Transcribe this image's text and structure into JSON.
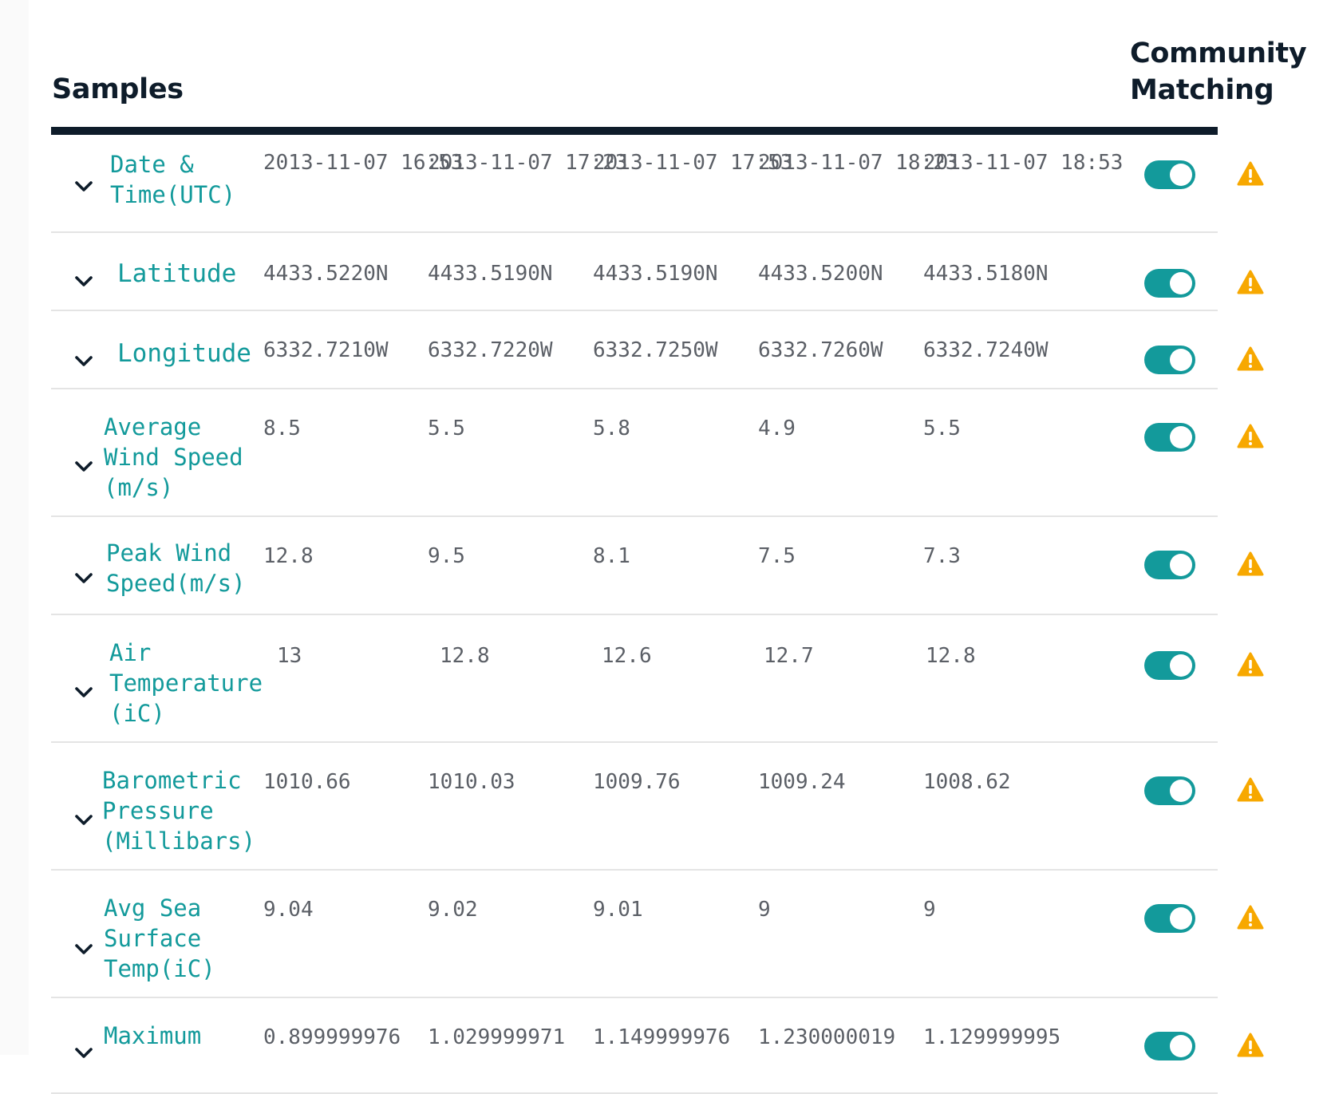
{
  "header": {
    "samples_title": "Samples",
    "community_title_line1": "Community",
    "community_title_line2": "Matching"
  },
  "icons": {
    "expand": "chevron-down-icon",
    "toggle": "toggle-switch",
    "alert": "warning-icon"
  },
  "colors": {
    "accent": "#139a9b",
    "heading": "#0e1c2a",
    "value_text": "#5b5f66",
    "warning": "#f7a800"
  },
  "rows": [
    {
      "label": "Date &\nTime(UTC)",
      "values": [
        "2013-11-07 16:53",
        "2013-11-07 17:23",
        "2013-11-07 17:53",
        "2013-11-07 18:23",
        "2013-11-07 18:53"
      ],
      "community_matching": true
    },
    {
      "label": "Latitude",
      "values": [
        "4433.5220N",
        "4433.5190N",
        "4433.5190N",
        "4433.5200N",
        "4433.5180N"
      ],
      "community_matching": true
    },
    {
      "label": "Longitude",
      "values": [
        "6332.7210W",
        "6332.7220W",
        "6332.7250W",
        "6332.7260W",
        "6332.7240W"
      ],
      "community_matching": true
    },
    {
      "label": "Average\nWind Speed\n(m/s)",
      "values": [
        "8.5",
        "5.5",
        "5.8",
        "4.9",
        "5.5"
      ],
      "community_matching": true
    },
    {
      "label": "Peak Wind\nSpeed(m/s)",
      "values": [
        "12.8",
        "9.5",
        "8.1",
        "7.5",
        "7.3"
      ],
      "community_matching": true
    },
    {
      "label": "Air\nTemperature\n(iC)",
      "values": [
        "13",
        "12.8",
        "12.6",
        "12.7",
        "12.8"
      ],
      "community_matching": true
    },
    {
      "label": "Barometric\nPressure\n(Millibars)",
      "values": [
        "1010.66",
        "1010.03",
        "1009.76",
        "1009.24",
        "1008.62"
      ],
      "community_matching": true
    },
    {
      "label": "Avg Sea\nSurface\nTemp(iC)",
      "values": [
        "9.04",
        "9.02",
        "9.01",
        "9",
        "9"
      ],
      "community_matching": true
    },
    {
      "label": "Maximum",
      "values": [
        "0.899999976",
        "1.029999971",
        "1.149999976",
        "1.230000019",
        "1.129999995"
      ],
      "community_matching": true
    }
  ]
}
